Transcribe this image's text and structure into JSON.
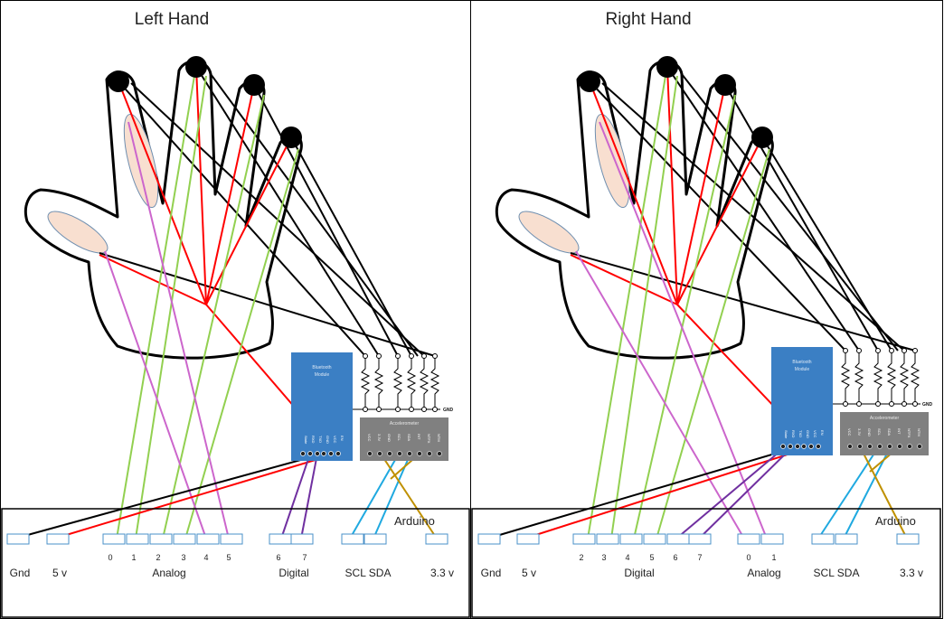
{
  "colors": {
    "black_wire": "#000000",
    "red_wire": "#ff0000",
    "green_wire": "#92d050",
    "purple_wire": "#cc66cc",
    "violet_wire": "#7030a0",
    "cyan_wire": "#1fa9e0",
    "gold_wire": "#bf9000",
    "bluetooth_module": "#3b7fc4",
    "accelerometer": "#808080",
    "sensor_fill": "#f8dfd0",
    "sensor_stroke": "#6f8fb0",
    "pin_box": "#4a90c8"
  },
  "left": {
    "title": "Left Hand",
    "bluetooth": {
      "title_line1": "Bluetooth",
      "title_line2": "Module",
      "pins": [
        "State",
        "RXD",
        "TXD",
        "GND",
        "VCC",
        "EN"
      ]
    },
    "gnd_label": "GND",
    "accelerometer": {
      "title": "Accelerometer",
      "pins": [
        "VCC",
        "3.3V",
        "GND",
        "SCL",
        "SDA",
        "INT",
        "NTFX",
        "NTM"
      ]
    },
    "arduino_label": "Arduino",
    "numbers": [
      "0",
      "1",
      "2",
      "3",
      "4",
      "5",
      "6",
      "7"
    ],
    "groups": {
      "gnd": "Gnd",
      "v5": "5 v",
      "g1": "Analog",
      "g2": "Digital",
      "sclsda": "SCL SDA",
      "v33": "3.3 v"
    }
  },
  "right": {
    "title": "Right Hand",
    "bluetooth": {
      "title_line1": "Bluetooth",
      "title_line2": "Module",
      "pins": [
        "State",
        "RXD",
        "TXD",
        "GND",
        "VCC",
        "EN"
      ]
    },
    "gnd_label": "GND",
    "accelerometer": {
      "title": "Accelerometer",
      "pins": [
        "VCC",
        "3.3V",
        "GND",
        "SCL",
        "SDA",
        "INT",
        "NTFX",
        "NTM"
      ]
    },
    "arduino_label": "Arduino",
    "numbers": [
      "2",
      "3",
      "4",
      "5",
      "6",
      "7",
      "0",
      "1"
    ],
    "groups": {
      "gnd": "Gnd",
      "v5": "5 v",
      "g1": "Digital",
      "g2": "Analog",
      "sclsda": "SCL SDA",
      "v33": "3.3 v"
    }
  }
}
